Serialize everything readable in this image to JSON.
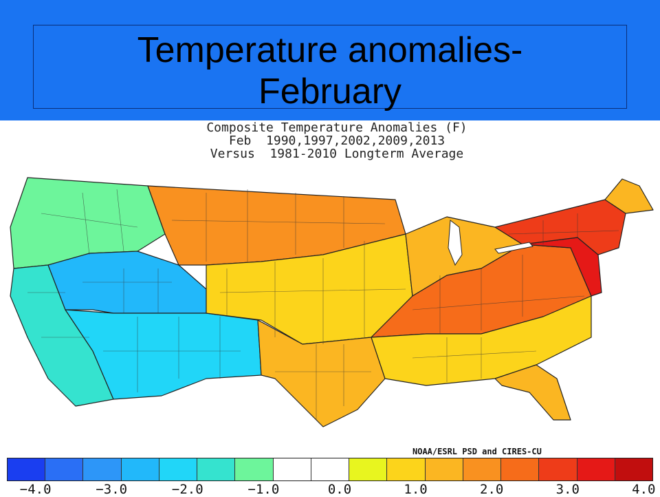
{
  "title": {
    "line1": "Temperature anomalies-",
    "line2": "February"
  },
  "map_caption": [
    "Composite Temperature Anomalies (F)",
    "Feb  1990,1997,2002,2009,2013",
    "Versus  1981-2010 Longterm Average"
  ],
  "credit": "NOAA/ESRL PSD and CIRES-CU",
  "colors": {
    "header_bg": "#1a74f2",
    "scale": [
      "#1a3ef0",
      "#2a6ff5",
      "#2d96f8",
      "#22b8fa",
      "#21d6f8",
      "#35e3cf",
      "#6df59b",
      "#ffffff",
      "#ffffff",
      "#e8f51f",
      "#fcd41b",
      "#fbb622",
      "#f99120",
      "#f66c1a",
      "#ee3c19",
      "#e51917",
      "#c10e0e"
    ]
  },
  "colorbar_ticks": [
    "-4.0",
    "-3.0",
    "-2.0",
    "-1.0",
    "0.0",
    "1.0",
    "2.0",
    "3.0",
    "4.0"
  ],
  "regions": [
    {
      "name": "pacific-northwest",
      "anomaly": -1.0
    },
    {
      "name": "great-basin",
      "anomaly": -2.5
    },
    {
      "name": "southwest",
      "anomaly": -2.0
    },
    {
      "name": "california",
      "anomaly": -1.5
    },
    {
      "name": "northern-plains",
      "anomaly": 2.0
    },
    {
      "name": "central-plains",
      "anomaly": 1.0
    },
    {
      "name": "texas",
      "anomaly": 1.5
    },
    {
      "name": "great-lakes",
      "anomaly": 1.5
    },
    {
      "name": "ohio-valley",
      "anomaly": 2.5
    },
    {
      "name": "southeast",
      "anomaly": 1.0
    },
    {
      "name": "florida",
      "anomaly": 1.5
    },
    {
      "name": "mid-atlantic",
      "anomaly": 3.5
    },
    {
      "name": "northeast",
      "anomaly": 3.0
    },
    {
      "name": "maine",
      "anomaly": 1.5
    }
  ]
}
